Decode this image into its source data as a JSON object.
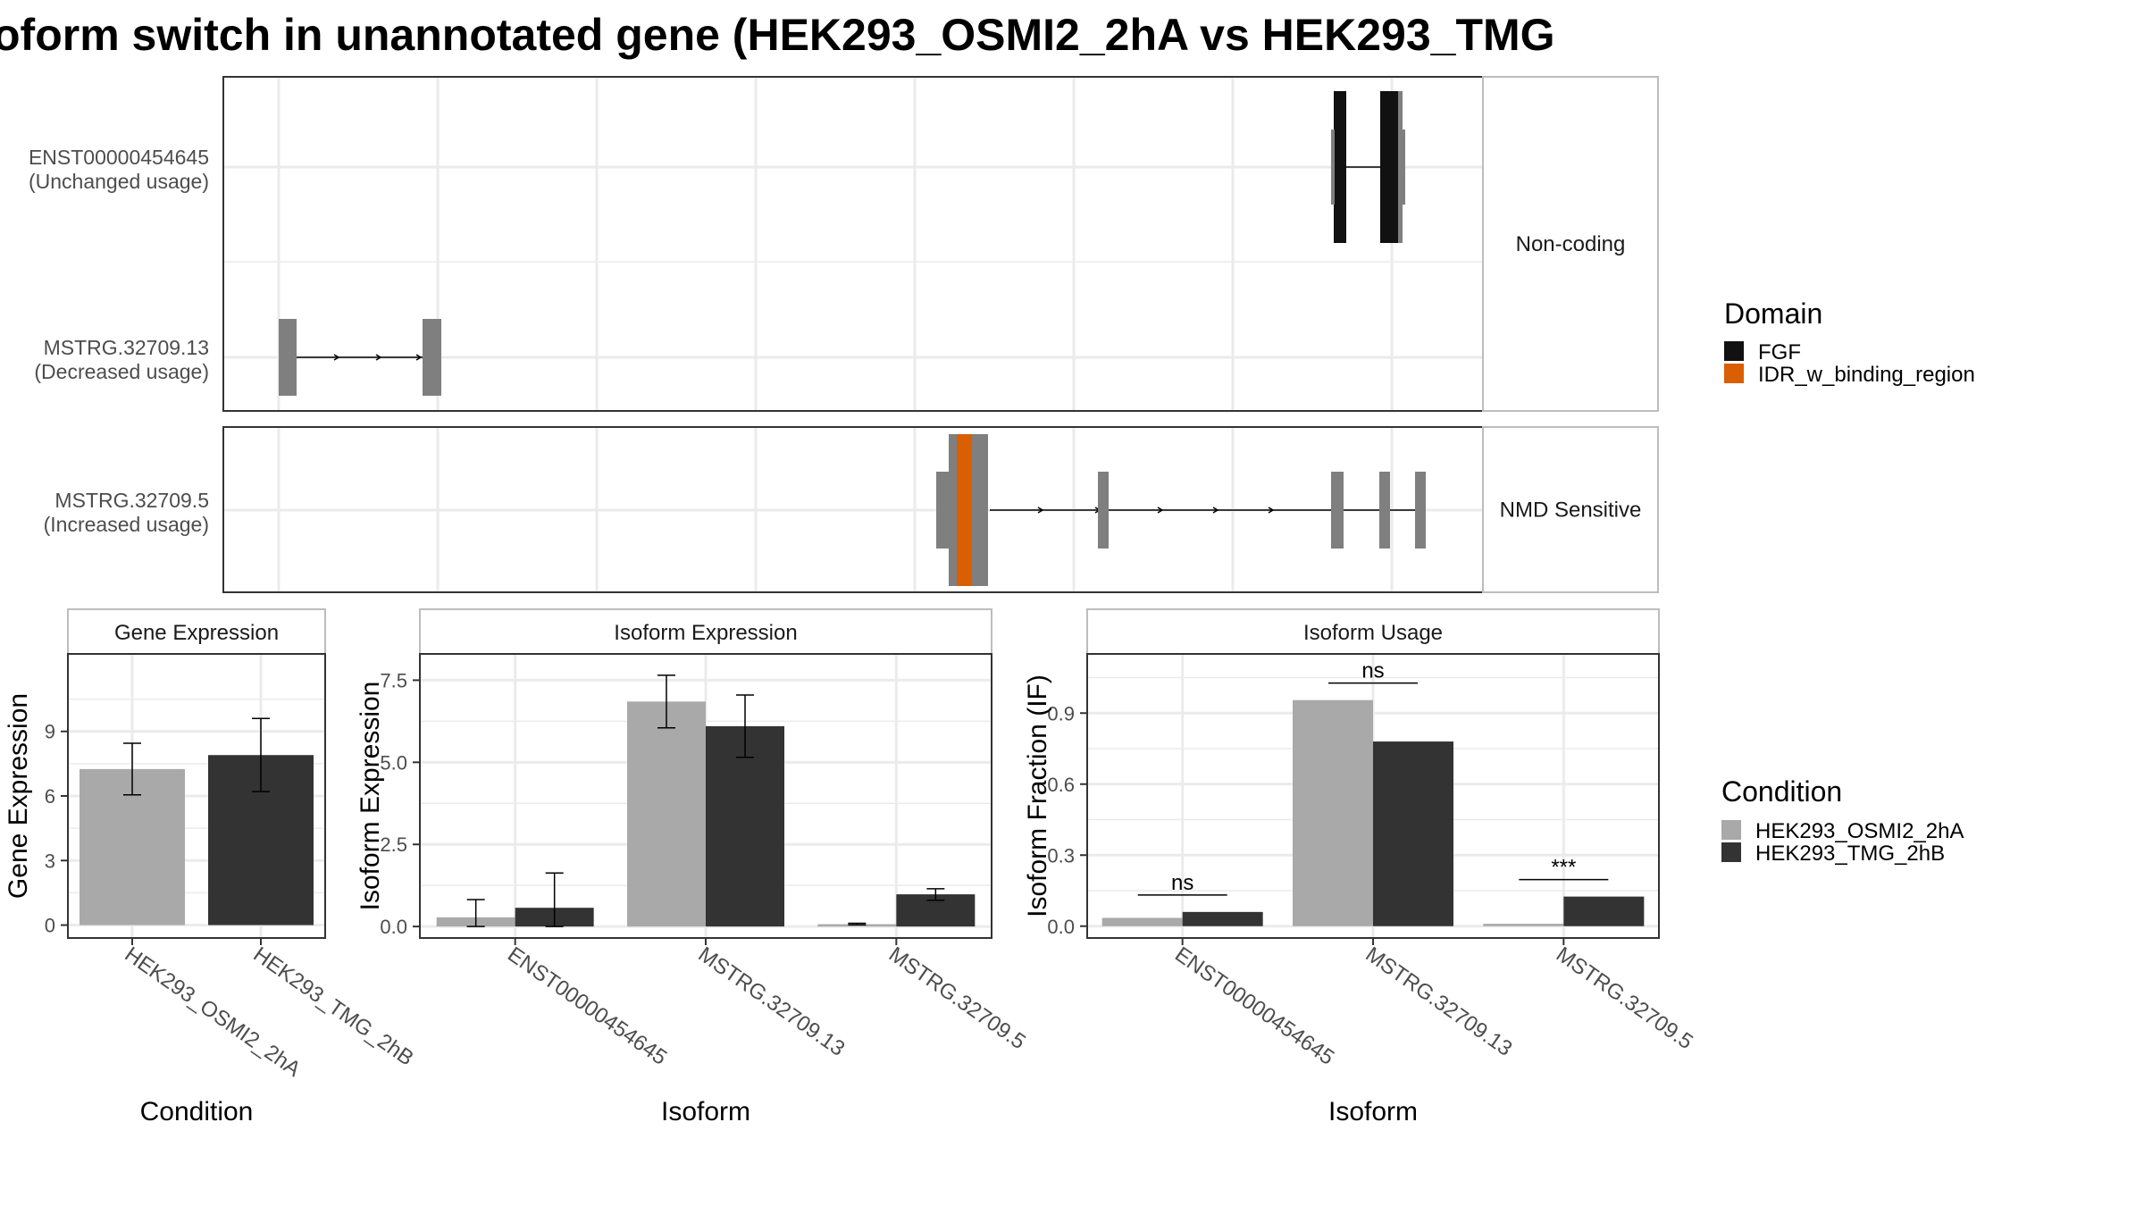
{
  "title": "oform switch in unannotated gene (HEK293_OSMI2_2hA vs HEK293_TMG",
  "colors": {
    "condition_a": "#a9a9a9",
    "condition_b": "#333333",
    "transcript_gray": "#7f7f7f",
    "domain_fgf": "#111111",
    "domain_idr": "#d95f02",
    "grid": "#ebebeb",
    "panel_border": "#333333",
    "strip_border": "#bdbdbd"
  },
  "transcript_plot": {
    "groups": [
      {
        "strip_label": "Non-coding",
        "transcripts": [
          {
            "name": "ENST00000454645",
            "usage": "(Unchanged usage)"
          },
          {
            "name": "MSTRG.32709.13",
            "usage": "(Decreased usage)"
          }
        ]
      },
      {
        "strip_label": "NMD Sensitive",
        "transcripts": [
          {
            "name": "MSTRG.32709.5",
            "usage": "(Increased usage)"
          }
        ]
      }
    ],
    "domain_legend": {
      "title": "Domain",
      "items": [
        {
          "label": "FGF",
          "color": "#111111"
        },
        {
          "label": "IDR_w_binding_region",
          "color": "#d95f02"
        }
      ]
    }
  },
  "chart_data": [
    {
      "type": "bar",
      "title": "Gene Expression",
      "xlabel": "Condition",
      "ylabel": "Gene Expression",
      "categories": [
        "HEK293_OSMI2_2hA",
        "HEK293_TMG_2hB"
      ],
      "series": [
        {
          "name": "HEK293_OSMI2_2hA",
          "values": [
            7.25,
            null
          ]
        },
        {
          "name": "HEK293_TMG_2hB",
          "values": [
            null,
            7.9
          ]
        }
      ],
      "error_low": [
        6.05,
        6.2
      ],
      "error_high": [
        8.45,
        9.6
      ],
      "ylim": [
        -0.6,
        12.6
      ],
      "yticks": [
        "0",
        "3",
        "6",
        "9"
      ]
    },
    {
      "type": "bar",
      "title": "Isoform Expression",
      "xlabel": "Isoform",
      "ylabel": "Isoform Expression",
      "categories": [
        "ENST00000454645",
        "MSTRG.32709.13",
        "MSTRG.32709.5"
      ],
      "series": [
        {
          "name": "HEK293_OSMI2_2hA",
          "values": [
            0.28,
            6.85,
            0.07
          ],
          "error_low": [
            0.0,
            6.05,
            0.05
          ],
          "error_high": [
            0.82,
            7.65,
            0.1
          ]
        },
        {
          "name": "HEK293_TMG_2hB",
          "values": [
            0.57,
            6.1,
            0.98
          ],
          "error_low": [
            0.0,
            5.15,
            0.8
          ],
          "error_high": [
            1.63,
            7.05,
            1.15
          ]
        }
      ],
      "ylim": [
        -0.35,
        8.3
      ],
      "yticks": [
        "0.0",
        "2.5",
        "5.0",
        "7.5"
      ]
    },
    {
      "type": "bar",
      "title": "Isoform Usage",
      "xlabel": "Isoform",
      "ylabel": "Isoform Fraction (IF)",
      "categories": [
        "ENST00000454645",
        "MSTRG.32709.13",
        "MSTRG.32709.5"
      ],
      "series": [
        {
          "name": "HEK293_OSMI2_2hA",
          "values": [
            0.035,
            0.955,
            0.01
          ]
        },
        {
          "name": "HEK293_TMG_2hB",
          "values": [
            0.06,
            0.78,
            0.125
          ]
        }
      ],
      "significance": [
        "ns",
        "ns",
        "***"
      ],
      "ylim": [
        -0.05,
        1.15
      ],
      "yticks": [
        "0.0",
        "0.3",
        "0.6",
        "0.9"
      ]
    }
  ],
  "condition_legend": {
    "title": "Condition",
    "items": [
      {
        "label": "HEK293_OSMI2_2hA",
        "color": "#a9a9a9"
      },
      {
        "label": "HEK293_TMG_2hB",
        "color": "#333333"
      }
    ]
  }
}
